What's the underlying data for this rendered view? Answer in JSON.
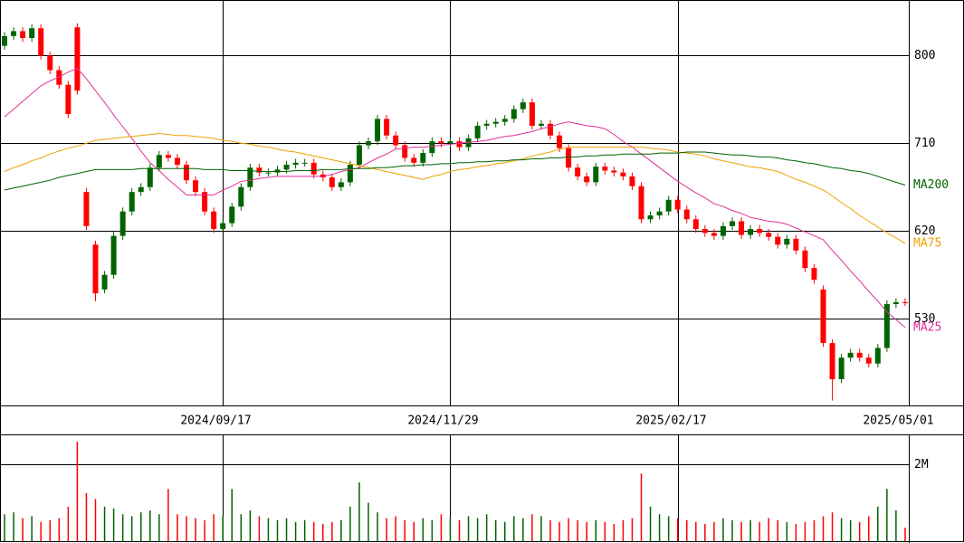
{
  "chart_data": {
    "type": "candlestick",
    "categories": [
      null,
      null,
      null,
      null,
      null,
      null,
      null,
      null,
      null,
      null,
      null,
      null,
      null,
      null,
      null,
      null,
      null,
      null,
      null,
      null,
      null,
      null,
      null,
      null,
      "2024/09/17",
      null,
      null,
      null,
      null,
      null,
      null,
      null,
      null,
      null,
      null,
      null,
      null,
      null,
      null,
      null,
      null,
      null,
      null,
      null,
      null,
      null,
      null,
      null,
      null,
      "2024/11/29",
      null,
      null,
      null,
      null,
      null,
      null,
      null,
      null,
      null,
      null,
      null,
      null,
      null,
      null,
      null,
      null,
      null,
      null,
      null,
      null,
      null,
      null,
      null,
      null,
      "2025/02/17",
      null,
      null,
      null,
      null,
      null,
      null,
      null,
      null,
      null,
      null,
      null,
      null,
      null,
      null,
      null,
      null,
      null,
      null,
      null,
      null,
      null,
      null,
      null,
      null,
      "2025/05/01"
    ],
    "open": [
      810,
      820,
      825,
      818,
      828,
      800,
      785,
      770,
      829,
      660,
      606,
      560,
      575,
      615,
      640,
      660,
      665,
      685,
      698,
      695,
      688,
      672,
      660,
      640,
      622,
      628,
      645,
      665,
      685,
      680,
      680,
      683,
      688,
      690,
      690,
      678,
      675,
      665,
      670,
      688,
      708,
      712,
      735,
      718,
      708,
      695,
      690,
      700,
      712,
      710,
      712,
      706,
      715,
      728,
      730,
      732,
      735,
      745,
      752,
      728,
      730,
      718,
      705,
      685,
      676,
      670,
      686,
      682,
      680,
      676,
      666,
      632,
      636,
      640,
      652,
      642,
      632,
      622,
      618,
      615,
      625,
      630,
      616,
      622,
      618,
      614,
      606,
      612,
      600,
      582,
      560,
      505,
      468,
      490,
      495,
      490,
      484,
      500,
      545,
      547
    ],
    "high": [
      824,
      829,
      829,
      832,
      832,
      804,
      789,
      774,
      833,
      664,
      610,
      579,
      619,
      644,
      664,
      669,
      689,
      702,
      702,
      699,
      692,
      676,
      664,
      644,
      632,
      649,
      669,
      689,
      689,
      684,
      687,
      692,
      694,
      694,
      694,
      682,
      679,
      674,
      692,
      712,
      716,
      739,
      739,
      722,
      712,
      699,
      704,
      716,
      716,
      716,
      716,
      719,
      732,
      734,
      736,
      739,
      749,
      756,
      756,
      734,
      734,
      722,
      709,
      689,
      680,
      690,
      690,
      686,
      684,
      680,
      670,
      640,
      644,
      656,
      656,
      646,
      636,
      626,
      622,
      629,
      634,
      634,
      626,
      626,
      622,
      618,
      616,
      616,
      604,
      586,
      564,
      509,
      494,
      499,
      499,
      494,
      504,
      549,
      551,
      551
    ],
    "low": [
      806,
      816,
      814,
      814,
      796,
      781,
      766,
      736,
      760,
      621,
      548,
      556,
      571,
      611,
      636,
      656,
      661,
      681,
      691,
      684,
      668,
      656,
      636,
      618,
      618,
      624,
      641,
      661,
      676,
      676,
      676,
      679,
      684,
      686,
      674,
      671,
      661,
      661,
      666,
      684,
      704,
      708,
      714,
      704,
      691,
      686,
      686,
      696,
      706,
      706,
      702,
      702,
      711,
      724,
      726,
      728,
      731,
      741,
      724,
      724,
      714,
      701,
      681,
      672,
      666,
      666,
      678,
      676,
      672,
      662,
      628,
      628,
      632,
      636,
      638,
      628,
      618,
      614,
      611,
      611,
      621,
      612,
      612,
      614,
      610,
      602,
      602,
      596,
      578,
      566,
      501,
      446,
      464,
      486,
      486,
      480,
      480,
      496,
      541,
      543
    ],
    "close": [
      820,
      825,
      818,
      828,
      800,
      785,
      770,
      740,
      764,
      625,
      556,
      575,
      615,
      640,
      660,
      665,
      685,
      698,
      695,
      688,
      672,
      660,
      640,
      622,
      628,
      645,
      665,
      685,
      680,
      680,
      683,
      688,
      690,
      690,
      678,
      675,
      665,
      670,
      688,
      708,
      712,
      735,
      718,
      708,
      695,
      690,
      700,
      712,
      710,
      712,
      706,
      715,
      728,
      730,
      732,
      735,
      745,
      752,
      728,
      730,
      718,
      705,
      685,
      676,
      670,
      686,
      682,
      680,
      676,
      666,
      632,
      636,
      640,
      652,
      642,
      632,
      622,
      618,
      615,
      625,
      630,
      616,
      622,
      618,
      614,
      606,
      612,
      600,
      582,
      570,
      505,
      468,
      490,
      495,
      490,
      484,
      500,
      545,
      547,
      546
    ],
    "volume": [
      700000,
      750000,
      600000,
      650000,
      500000,
      550000,
      600000,
      900000,
      2590000,
      1250000,
      1100000,
      900000,
      850000,
      700000,
      650000,
      750000,
      800000,
      700000,
      1360000,
      700000,
      650000,
      600000,
      550000,
      700000,
      650000,
      1360000,
      700000,
      800000,
      650000,
      600000,
      550000,
      600000,
      500000,
      550000,
      500000,
      450000,
      500000,
      550000,
      900000,
      1530000,
      1000000,
      750000,
      600000,
      650000,
      550000,
      500000,
      600000,
      550000,
      700000,
      600000,
      550000,
      650000,
      600000,
      700000,
      550000,
      500000,
      650000,
      600000,
      700000,
      650000,
      550000,
      500000,
      600000,
      550000,
      500000,
      550000,
      500000,
      450000,
      550000,
      600000,
      1760000,
      900000,
      700000,
      650000,
      600000,
      550000,
      500000,
      450000,
      500000,
      600000,
      550000,
      500000,
      550000,
      500000,
      600000,
      550000,
      500000,
      450000,
      500000,
      550000,
      650000,
      750000,
      600000,
      550000,
      500000,
      650000,
      900000,
      1360000,
      800000,
      350000
    ],
    "moving_averages": [
      {
        "name": "MA25",
        "color": "#e0309a",
        "values": [
          737,
          745,
          753,
          761,
          769,
          774,
          778,
          783,
          787,
          776,
          764,
          752,
          739,
          727,
          715,
          702,
          690,
          682,
          673,
          665,
          657,
          657,
          657,
          657,
          662,
          666,
          671,
          672,
          674,
          675,
          676,
          676,
          676,
          676,
          676,
          676,
          678,
          681,
          683,
          685,
          690,
          695,
          699,
          704,
          705,
          706,
          706,
          707,
          708,
          709,
          710,
          711,
          712,
          713,
          715,
          717,
          718,
          720,
          722,
          725,
          727,
          730,
          732,
          730,
          728,
          727,
          725,
          719,
          712,
          706,
          699,
          692,
          685,
          678,
          671,
          665,
          659,
          654,
          648,
          645,
          641,
          638,
          634,
          632,
          630,
          629,
          627,
          623,
          619,
          615,
          611,
          600,
          590,
          579,
          569,
          558,
          548,
          537,
          529,
          521
        ]
      },
      {
        "name": "MA75",
        "color": "#f0a000",
        "values": [
          681,
          685,
          688,
          692,
          695,
          699,
          702,
          705,
          707,
          710,
          713,
          714,
          715,
          716,
          717,
          718,
          719,
          720,
          719,
          718,
          718,
          717,
          716,
          715,
          713,
          712,
          710,
          709,
          707,
          706,
          704,
          702,
          701,
          699,
          697,
          695,
          693,
          691,
          689,
          687,
          685,
          683,
          681,
          679,
          677,
          675,
          673,
          676,
          678,
          681,
          683,
          684,
          686,
          687,
          689,
          690,
          692,
          694,
          697,
          699,
          701,
          704,
          706,
          706,
          706,
          706,
          706,
          706,
          706,
          706,
          706,
          705,
          704,
          703,
          701,
          700,
          699,
          697,
          694,
          692,
          690,
          688,
          686,
          685,
          683,
          681,
          677,
          673,
          670,
          666,
          662,
          656,
          649,
          643,
          636,
          630,
          624,
          618,
          613,
          607
        ]
      },
      {
        "name": "MA200",
        "color": "#006400",
        "values": [
          662,
          664,
          666,
          668,
          670,
          672,
          675,
          677,
          679,
          681,
          683,
          683,
          683,
          683,
          683,
          684,
          684,
          684,
          684,
          684,
          684,
          684,
          683,
          683,
          683,
          682,
          682,
          682,
          681,
          681,
          681,
          681,
          682,
          682,
          682,
          683,
          683,
          683,
          684,
          684,
          684,
          685,
          685,
          686,
          687,
          687,
          688,
          688,
          689,
          689,
          690,
          690,
          691,
          691,
          692,
          692,
          693,
          693,
          694,
          694,
          695,
          695,
          696,
          696,
          697,
          697,
          698,
          698,
          699,
          699,
          699,
          699,
          700,
          700,
          700,
          701,
          701,
          701,
          700,
          699,
          698,
          698,
          697,
          696,
          696,
          695,
          693,
          692,
          690,
          689,
          687,
          685,
          684,
          682,
          681,
          679,
          676,
          673,
          670,
          667
        ]
      }
    ],
    "up_color": "#006400",
    "down_color": "#ff0000",
    "ylim": [
      441,
      857
    ],
    "yticks": [
      800,
      710,
      620,
      530
    ],
    "volume_ylim": [
      0,
      2780000
    ],
    "volume_yticks": [
      {
        "value": 2000000,
        "label": "2M"
      }
    ],
    "grid": true
  }
}
